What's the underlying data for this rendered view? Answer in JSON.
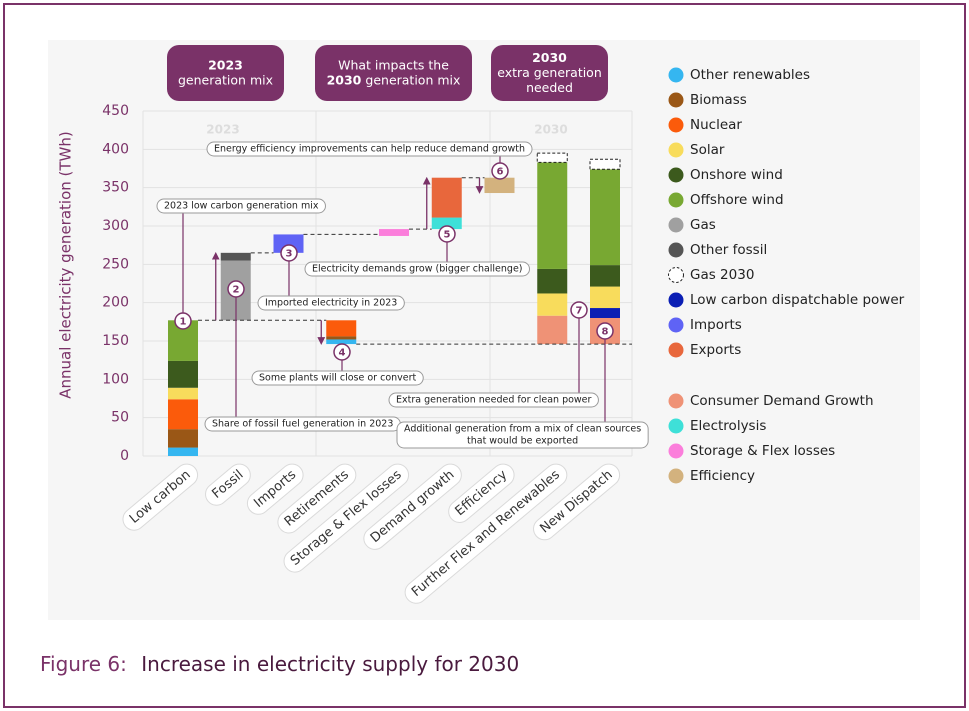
{
  "chart_data": {
    "type": "waterfall",
    "y_label": "Annual electricity generation (TWh)",
    "ylim": [
      0,
      450
    ],
    "yticks": [
      0,
      50,
      100,
      150,
      200,
      250,
      300,
      350,
      400,
      450
    ],
    "grid": true,
    "section_labels": [
      "2023",
      "2030"
    ],
    "header_boxes": [
      [
        [
          {
            "text": "2023",
            "bold": true
          }
        ],
        [
          {
            "text": "generation mix"
          }
        ]
      ],
      [
        [
          {
            "text": "What impacts the"
          }
        ],
        [
          {
            "text": "2030",
            "bold": true
          },
          {
            "text": "generation mix"
          }
        ]
      ],
      [
        [
          {
            "text": "2030",
            "bold": true
          }
        ],
        [
          {
            "text": "extra generation"
          }
        ],
        [
          {
            "text": "needed"
          }
        ]
      ]
    ],
    "series": [
      {
        "name": "Other renewables",
        "color": "#35b6f0"
      },
      {
        "name": "Biomass",
        "color": "#9a5716"
      },
      {
        "name": "Nuclear",
        "color": "#fb5b0b"
      },
      {
        "name": "Solar",
        "color": "#f8dc5c"
      },
      {
        "name": "Onshore wind",
        "color": "#3c5a1d"
      },
      {
        "name": "Offshore wind",
        "color": "#78a832"
      },
      {
        "name": "Gas",
        "color": "#a0a0a0"
      },
      {
        "name": "Other fossil",
        "color": "#555555"
      },
      {
        "name": "Gas 2030",
        "color": "#ffffff",
        "dashed": true
      },
      {
        "name": "Low carbon dispatchable power",
        "color": "#0a1eb4"
      },
      {
        "name": "Imports",
        "color": "#5f63f5"
      },
      {
        "name": "Exports",
        "color": "#e8673c"
      }
    ],
    "demand_series": [
      {
        "name": "Consumer Demand Growth",
        "color": "#ef9276"
      },
      {
        "name": "Electrolysis",
        "color": "#3ee0d8"
      },
      {
        "name": "Storage & Flex losses",
        "color": "#fb7edb"
      },
      {
        "name": "Efficiency",
        "color": "#d3b27e"
      }
    ],
    "columns": [
      {
        "category": "Low carbon",
        "start": 0,
        "segments": [
          {
            "series": "Other renewables",
            "value": 11
          },
          {
            "series": "Biomass",
            "value": 24
          },
          {
            "series": "Nuclear",
            "value": 39
          },
          {
            "series": "Solar",
            "value": 15
          },
          {
            "series": "Onshore wind",
            "value": 35
          },
          {
            "series": "Offshore wind",
            "value": 53
          }
        ]
      },
      {
        "category": "Fossil",
        "start": 177,
        "segments": [
          {
            "series": "Gas",
            "value": 78
          },
          {
            "series": "Other fossil",
            "value": 10
          }
        ]
      },
      {
        "category": "Imports",
        "start": 265,
        "segments": [
          {
            "series": "Imports",
            "value": 24
          }
        ]
      },
      {
        "category": "Retirements",
        "start": 177,
        "segments": [
          {
            "series": "Nuclear",
            "value": -21
          },
          {
            "series": "Biomass",
            "value": -4
          },
          {
            "series": "Other renewables",
            "value": -6
          }
        ]
      },
      {
        "category": "Storage & Flex losses",
        "start": 287,
        "segments": [
          {
            "series": "Storage & Flex losses",
            "value": 9
          }
        ]
      },
      {
        "category": "Demand growth",
        "start": 296,
        "segments": [
          {
            "series": "Electrolysis",
            "value": 15
          },
          {
            "series": "Exports",
            "value": 52
          }
        ]
      },
      {
        "category": "Efficiency",
        "start": 363,
        "segments": [
          {
            "series": "Efficiency",
            "value": -20
          }
        ]
      },
      {
        "category": "Further Flex and Renewables",
        "start": 146,
        "segments": [
          {
            "series": "Consumer Demand Growth",
            "value": 37
          },
          {
            "series": "Solar",
            "value": 29
          },
          {
            "series": "Onshore wind",
            "value": 32
          },
          {
            "series": "Offshore wind",
            "value": 139
          },
          {
            "series": "Gas 2030",
            "value": 12
          }
        ]
      },
      {
        "category": "New Dispatch",
        "start": 146,
        "segments": [
          {
            "series": "Consumer Demand Growth",
            "value": 34
          },
          {
            "series": "Low carbon dispatchable power",
            "value": 13
          },
          {
            "series": "Solar",
            "value": 28
          },
          {
            "series": "Onshore wind",
            "value": 28
          },
          {
            "series": "Offshore wind",
            "value": 125
          },
          {
            "series": "Gas 2030",
            "value": 13
          }
        ]
      }
    ],
    "annotations": [
      {
        "marker": 1,
        "lines": [
          "2023 low carbon generation mix"
        ]
      },
      {
        "marker": 2,
        "lines": [
          "Share of fossil fuel generation in 2023"
        ]
      },
      {
        "marker": 3,
        "lines": [
          "Imported electricity in 2023"
        ]
      },
      {
        "marker": 4,
        "lines": [
          "Some plants will close or convert"
        ]
      },
      {
        "marker": 5,
        "lines": [
          "Electricity demands grow (bigger challenge)"
        ]
      },
      {
        "marker": 6,
        "lines": [
          "Energy efficiency improvements can help reduce demand growth"
        ]
      },
      {
        "marker": 7,
        "lines": [
          "Extra generation needed for clean power"
        ]
      },
      {
        "marker": 8,
        "lines": [
          "Additional generation from a mix of clean sources",
          "that would be exported"
        ]
      }
    ]
  },
  "figure_caption": {
    "label": "Figure 6:",
    "title": "Increase in electricity supply for 2030"
  }
}
